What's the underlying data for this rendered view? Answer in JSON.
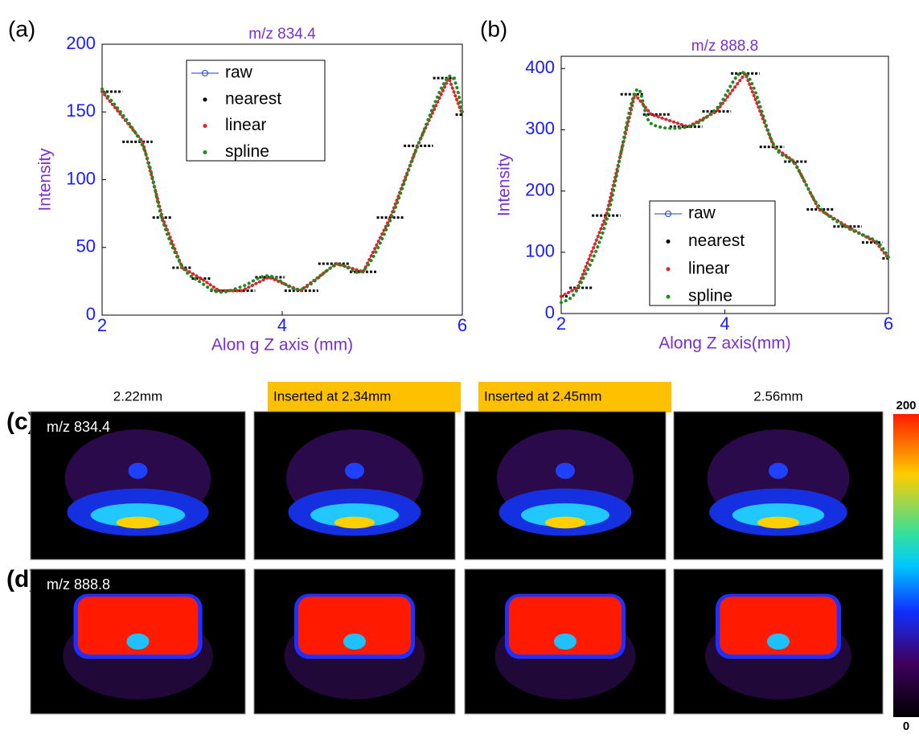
{
  "chart_data": [
    {
      "type": "line",
      "panel_label": "(a)",
      "title": "m/z 834.4",
      "x_label": "Alon g Z axis  (mm)",
      "y_label": "Intensity",
      "xlim": [
        2,
        6
      ],
      "xticks": [
        2,
        4,
        6
      ],
      "ylim": [
        0,
        200
      ],
      "yticks": [
        0,
        50,
        100,
        150,
        200
      ],
      "legend": "upper center",
      "x": [
        2.0,
        2.45,
        2.67,
        2.89,
        3.1,
        3.3,
        3.55,
        3.85,
        4.2,
        4.6,
        4.9,
        5.2,
        5.5,
        5.85,
        6.0
      ],
      "series": [
        {
          "name": "raw",
          "color": "#1f3bd6",
          "values": [
            165,
            128,
            72,
            35,
            27,
            18,
            18,
            28,
            18,
            38,
            32,
            72,
            125,
            175,
            148
          ]
        },
        {
          "name": "nearest",
          "color": "#000000",
          "values": [
            165,
            128,
            72,
            35,
            27,
            18,
            18,
            28,
            18,
            38,
            32,
            72,
            125,
            175,
            148
          ]
        },
        {
          "name": "linear",
          "color": "#e8231e",
          "values": [
            165,
            128,
            72,
            35,
            27,
            18,
            18,
            28,
            18,
            38,
            32,
            72,
            125,
            175,
            148
          ]
        },
        {
          "name": "spline",
          "color": "#1f8a1f",
          "values": [
            167,
            125,
            70,
            36,
            24,
            17,
            21,
            29,
            19,
            37,
            33,
            70,
            124,
            176,
            150
          ]
        }
      ]
    },
    {
      "type": "line",
      "panel_label": "(b)",
      "title": "m/z 888.8",
      "x_label": "Along Z axis(mm)",
      "y_label": "Intensity",
      "xlim": [
        2,
        6
      ],
      "xticks": [
        2,
        4,
        6
      ],
      "ylim": [
        0,
        420
      ],
      "yticks": [
        0,
        100,
        200,
        300,
        400
      ],
      "legend": "lower center",
      "x": [
        2.0,
        2.2,
        2.55,
        2.9,
        3.1,
        3.55,
        3.9,
        4.25,
        4.6,
        4.85,
        5.15,
        5.5,
        5.85,
        6.0
      ],
      "series": [
        {
          "name": "raw",
          "color": "#1f3bd6",
          "values": [
            28,
            42,
            160,
            358,
            325,
            305,
            330,
            392,
            272,
            248,
            170,
            142,
            116,
            90
          ]
        },
        {
          "name": "nearest",
          "color": "#000000",
          "values": [
            28,
            42,
            160,
            358,
            325,
            305,
            330,
            392,
            272,
            248,
            170,
            142,
            116,
            90
          ]
        },
        {
          "name": "linear",
          "color": "#e8231e",
          "values": [
            28,
            42,
            160,
            358,
            325,
            305,
            330,
            392,
            272,
            248,
            170,
            142,
            116,
            90
          ]
        },
        {
          "name": "spline",
          "color": "#1f8a1f",
          "values": [
            18,
            40,
            150,
            360,
            310,
            305,
            335,
            392,
            275,
            245,
            175,
            140,
            118,
            92
          ]
        }
      ]
    }
  ],
  "figure": {
    "row_labels": [
      "(c)",
      "(d)"
    ],
    "row_titles": [
      "m/z 834.4",
      "m/z 888.8"
    ],
    "column_titles": [
      "2.22mm",
      "Inserted  at 2.34mm",
      "Inserted  at 2.45mm",
      "2.56mm"
    ],
    "colorbar_ticks": [
      200,
      0
    ]
  }
}
